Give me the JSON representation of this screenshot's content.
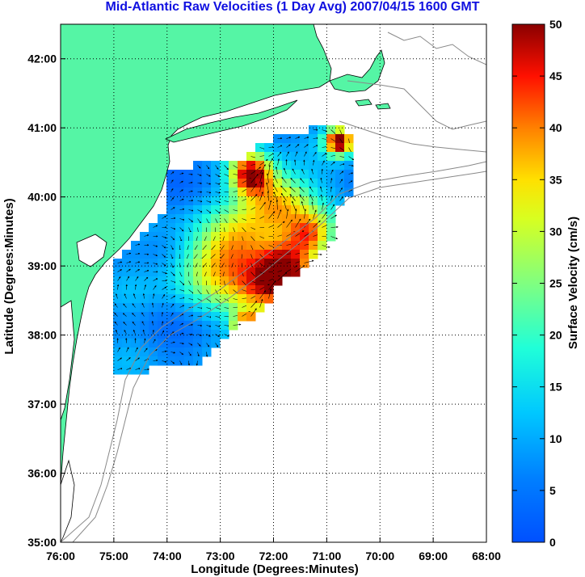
{
  "title": "Mid-Atlantic Raw Velocities (1 Day Avg) 2007/04/15 1600 GMT",
  "chart_data": {
    "type": "heatmap",
    "xlabel": "Longitude (Degrees:Minutes)",
    "ylabel": "Latitude (Degrees:Minutes)",
    "xlim": [
      -76,
      -68
    ],
    "ylim": [
      35,
      42.5
    ],
    "x_ticks": [
      -76,
      -75,
      -74,
      -73,
      -72,
      -71,
      -70,
      -69,
      -68
    ],
    "x_tick_labels": [
      "76:00",
      "75:00",
      "74:00",
      "73:00",
      "72:00",
      "71:00",
      "70:00",
      "69:00",
      "68:00"
    ],
    "y_ticks": [
      35,
      36,
      37,
      38,
      39,
      40,
      41,
      42
    ],
    "y_tick_labels": [
      "35:00",
      "36:00",
      "37:00",
      "38:00",
      "39:00",
      "40:00",
      "41:00",
      "42:00"
    ],
    "grid": true,
    "colorbar": {
      "label": "Surface Velocity (cm/s)",
      "min": 0,
      "max": 50,
      "ticks": [
        0,
        5,
        10,
        15,
        20,
        25,
        30,
        35,
        40,
        45,
        50
      ],
      "colormap": "jet"
    },
    "colors": {
      "land": "#55f5a5",
      "coast": "#000000",
      "bathymetry": "#888888",
      "grid": "#000000"
    }
  }
}
